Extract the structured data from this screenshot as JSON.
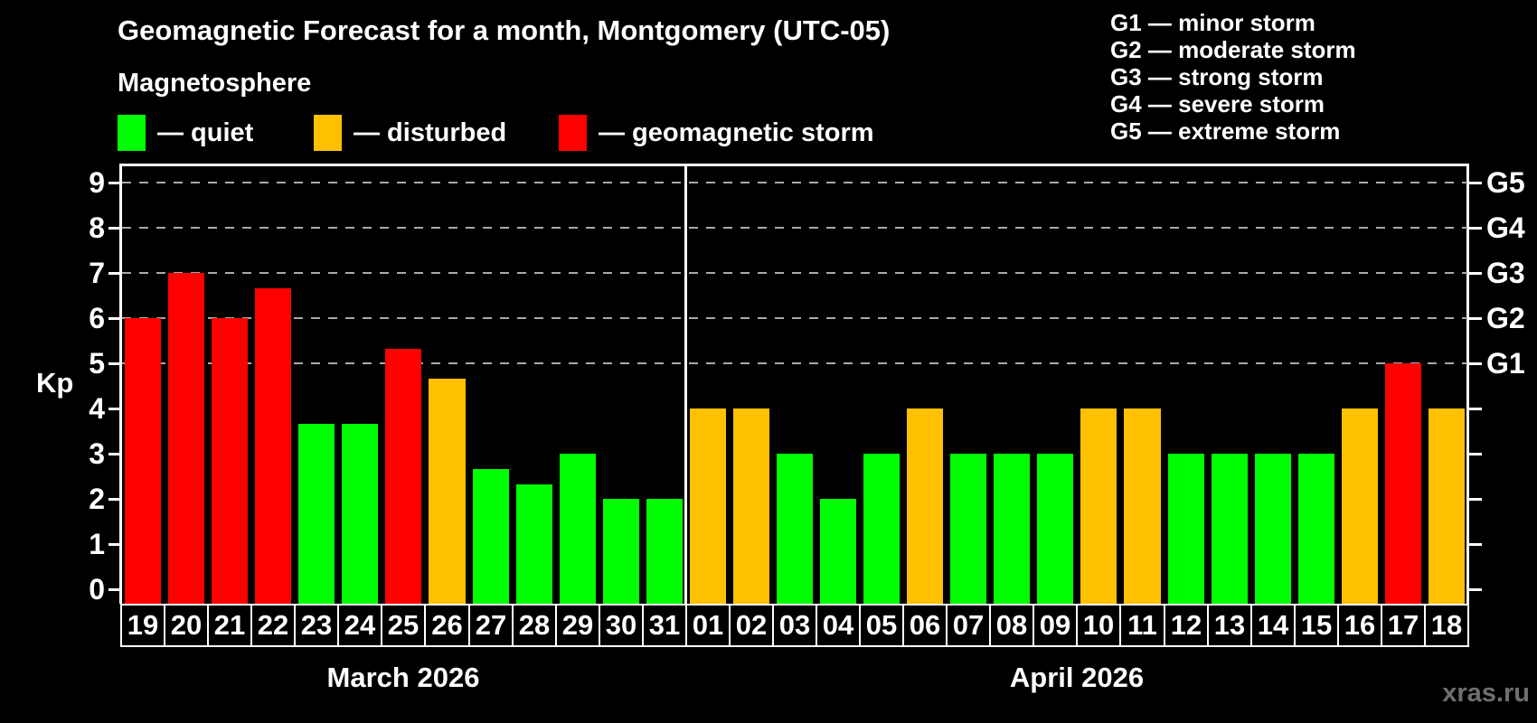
{
  "title": "Geomagnetic Forecast for a month, Montgomery (UTC-05)",
  "subtitle": "Magnetosphere",
  "legend": {
    "items": [
      {
        "status": "quiet",
        "color": "#00FF00",
        "label": "— quiet"
      },
      {
        "status": "disturbed",
        "color": "#FFC000",
        "label": "— disturbed"
      },
      {
        "status": "storm",
        "color": "#FF0000",
        "label": "— geomagnetic storm"
      }
    ]
  },
  "storm_scale_legend": [
    "G1 — minor storm",
    "G2 — moderate storm",
    "G3 — strong storm",
    "G4 — severe storm",
    "G5 — extreme storm"
  ],
  "y_axis": {
    "label": "Kp",
    "ticks": [
      "0",
      "1",
      "2",
      "3",
      "4",
      "5",
      "6",
      "7",
      "8",
      "9"
    ]
  },
  "right_axis": {
    "labels": [
      {
        "text": "G1",
        "kp": 5
      },
      {
        "text": "G2",
        "kp": 6
      },
      {
        "text": "G3",
        "kp": 7
      },
      {
        "text": "G4",
        "kp": 8
      },
      {
        "text": "G5",
        "kp": 9
      }
    ]
  },
  "watermark": "xras.ru",
  "chart_data": {
    "type": "bar",
    "title": "Geomagnetic Forecast for a month, Montgomery (UTC-05)",
    "xlabel": "",
    "ylabel": "Kp",
    "ylim": [
      0,
      9
    ],
    "grid_kp": [
      5,
      6,
      7,
      8,
      9
    ],
    "legend_position": "top",
    "status_colors": {
      "quiet": "#00FF00",
      "disturbed": "#FFC000",
      "storm": "#FF0000"
    },
    "months": [
      {
        "label": "March 2026",
        "days": [
          {
            "day": "19",
            "kp": 6.0,
            "status": "storm"
          },
          {
            "day": "20",
            "kp": 7.0,
            "status": "storm"
          },
          {
            "day": "21",
            "kp": 6.0,
            "status": "storm"
          },
          {
            "day": "22",
            "kp": 6.67,
            "status": "storm"
          },
          {
            "day": "23",
            "kp": 3.67,
            "status": "quiet"
          },
          {
            "day": "24",
            "kp": 3.67,
            "status": "quiet"
          },
          {
            "day": "25",
            "kp": 5.33,
            "status": "storm"
          },
          {
            "day": "26",
            "kp": 4.67,
            "status": "disturbed"
          },
          {
            "day": "27",
            "kp": 2.67,
            "status": "quiet"
          },
          {
            "day": "28",
            "kp": 2.33,
            "status": "quiet"
          },
          {
            "day": "29",
            "kp": 3.0,
            "status": "quiet"
          },
          {
            "day": "30",
            "kp": 2.0,
            "status": "quiet"
          },
          {
            "day": "31",
            "kp": 2.0,
            "status": "quiet"
          }
        ]
      },
      {
        "label": "April 2026",
        "days": [
          {
            "day": "01",
            "kp": 4.0,
            "status": "disturbed"
          },
          {
            "day": "02",
            "kp": 4.0,
            "status": "disturbed"
          },
          {
            "day": "03",
            "kp": 3.0,
            "status": "quiet"
          },
          {
            "day": "04",
            "kp": 2.0,
            "status": "quiet"
          },
          {
            "day": "05",
            "kp": 3.0,
            "status": "quiet"
          },
          {
            "day": "06",
            "kp": 4.0,
            "status": "disturbed"
          },
          {
            "day": "07",
            "kp": 3.0,
            "status": "quiet"
          },
          {
            "day": "08",
            "kp": 3.0,
            "status": "quiet"
          },
          {
            "day": "09",
            "kp": 3.0,
            "status": "quiet"
          },
          {
            "day": "10",
            "kp": 4.0,
            "status": "disturbed"
          },
          {
            "day": "11",
            "kp": 4.0,
            "status": "disturbed"
          },
          {
            "day": "12",
            "kp": 3.0,
            "status": "quiet"
          },
          {
            "day": "13",
            "kp": 3.0,
            "status": "quiet"
          },
          {
            "day": "14",
            "kp": 3.0,
            "status": "quiet"
          },
          {
            "day": "15",
            "kp": 3.0,
            "status": "quiet"
          },
          {
            "day": "16",
            "kp": 4.0,
            "status": "disturbed"
          },
          {
            "day": "17",
            "kp": 5.0,
            "status": "storm"
          },
          {
            "day": "18",
            "kp": 4.0,
            "status": "disturbed"
          }
        ]
      }
    ]
  }
}
